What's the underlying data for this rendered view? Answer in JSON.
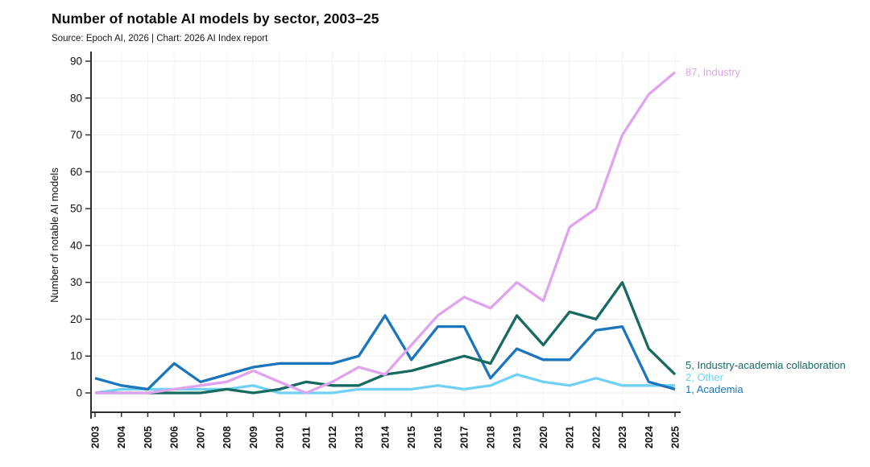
{
  "title": "Number of notable AI models by sector, 2003–25",
  "subtitle": "Source: Epoch AI, 2026 | Chart: 2026 AI Index report",
  "chart_data": {
    "type": "line",
    "title": "Number of notable AI models by sector, 2003–25",
    "source": "Source: Epoch AI, 2026 | Chart: 2026 AI Index report",
    "ylabel": "Number of notable AI models",
    "xlabel": "",
    "ylim": [
      0,
      90
    ],
    "ytick_step": 10,
    "grid": true,
    "legend_position": "end-labels-right",
    "x": [
      2003,
      2004,
      2005,
      2006,
      2007,
      2008,
      2009,
      2010,
      2011,
      2012,
      2013,
      2014,
      2015,
      2016,
      2017,
      2018,
      2019,
      2020,
      2021,
      2022,
      2023,
      2024,
      2025
    ],
    "series": [
      {
        "name": "Industry",
        "color": "#e0a3ee",
        "end_label": "87, Industry",
        "values": [
          0,
          0,
          0,
          1,
          2,
          3,
          6,
          3,
          0,
          3,
          7,
          5,
          13,
          21,
          26,
          23,
          30,
          25,
          45,
          50,
          70,
          81,
          87
        ]
      },
      {
        "name": "Industry-academia collaboration",
        "color": "#176a5f",
        "end_label": "5, Industry-academia collaboration",
        "values": [
          0,
          0,
          0,
          0,
          0,
          1,
          0,
          1,
          3,
          2,
          2,
          5,
          6,
          8,
          10,
          8,
          21,
          13,
          22,
          20,
          30,
          12,
          5
        ]
      },
      {
        "name": "Other",
        "color": "#70d1f4",
        "end_label": "2, Other",
        "values": [
          0,
          1,
          1,
          1,
          1,
          1,
          2,
          0,
          0,
          0,
          1,
          1,
          1,
          2,
          1,
          2,
          5,
          3,
          2,
          4,
          2,
          2,
          2
        ]
      },
      {
        "name": "Academia",
        "color": "#1b75bc",
        "end_label": "1, Academia",
        "values": [
          4,
          2,
          1,
          8,
          3,
          5,
          7,
          8,
          8,
          8,
          10,
          21,
          9,
          18,
          18,
          4,
          12,
          9,
          9,
          17,
          18,
          3,
          1
        ]
      }
    ]
  }
}
